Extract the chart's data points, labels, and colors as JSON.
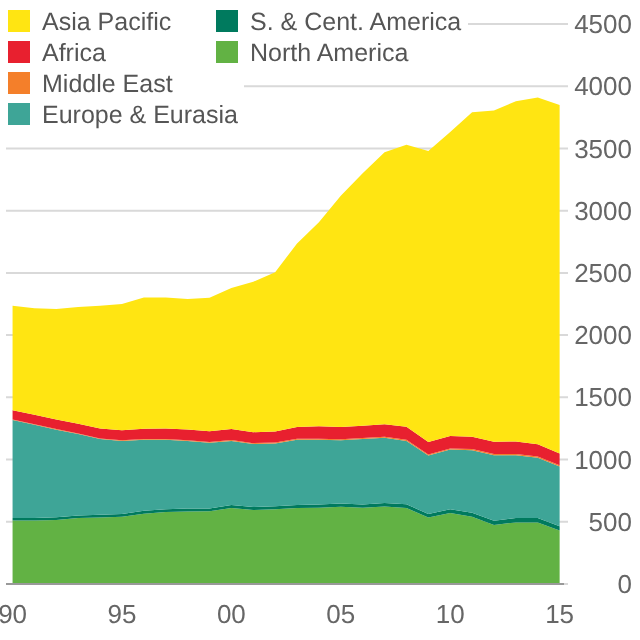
{
  "chart_data": {
    "type": "area",
    "stacked": true,
    "x": [
      1990,
      1991,
      1992,
      1993,
      1994,
      1995,
      1996,
      1997,
      1998,
      1999,
      2000,
      2001,
      2002,
      2003,
      2004,
      2005,
      2006,
      2007,
      2008,
      2009,
      2010,
      2011,
      2012,
      2013,
      2014,
      2015
    ],
    "series": [
      {
        "name": "North America",
        "color": "#62b244",
        "values": [
          510,
          510,
          515,
          530,
          535,
          540,
          565,
          578,
          583,
          585,
          610,
          595,
          600,
          610,
          612,
          620,
          612,
          622,
          610,
          535,
          570,
          540,
          475,
          495,
          495,
          430
        ]
      },
      {
        "name": "S. & Cent. America",
        "color": "#007a5e",
        "values": [
          20,
          20,
          21,
          21,
          22,
          22,
          23,
          23,
          23,
          22,
          24,
          24,
          24,
          25,
          26,
          27,
          27,
          28,
          30,
          28,
          30,
          32,
          34,
          35,
          35,
          35
        ]
      },
      {
        "name": "Europe & Eurasia",
        "color": "#3ea597",
        "values": [
          788,
          750,
          704,
          654,
          608,
          588,
          572,
          559,
          544,
          528,
          516,
          506,
          506,
          525,
          522,
          508,
          526,
          525,
          510,
          469,
          480,
          503,
          526,
          505,
          485,
          479
        ]
      },
      {
        "name": "Middle East",
        "color": "#f47f2a",
        "values": [
          4,
          4,
          5,
          5,
          5,
          5,
          6,
          6,
          6,
          6,
          7,
          7,
          7,
          7,
          8,
          8,
          8,
          9,
          9,
          9,
          9,
          9,
          10,
          10,
          10,
          10
        ]
      },
      {
        "name": "Africa",
        "color": "#e8202f",
        "values": [
          75,
          76,
          76,
          77,
          79,
          80,
          82,
          84,
          86,
          86,
          88,
          88,
          89,
          95,
          100,
          98,
          98,
          100,
          105,
          100,
          100,
          100,
          98,
          100,
          98,
          95
        ]
      },
      {
        "name": "Asia Pacific",
        "color": "#ffe512",
        "values": [
          838,
          855,
          889,
          938,
          986,
          1015,
          1054,
          1052,
          1048,
          1073,
          1133,
          1209,
          1279,
          1475,
          1638,
          1859,
          2029,
          2186,
          2266,
          2339,
          2444,
          2606,
          2662,
          2735,
          2787,
          2801
        ]
      }
    ],
    "xlim": [
      1989.7,
      2015.2
    ],
    "xticks": [
      {
        "value": 1990,
        "label": "90"
      },
      {
        "value": 1995,
        "label": "95"
      },
      {
        "value": 2000,
        "label": "00"
      },
      {
        "value": 2005,
        "label": "05"
      },
      {
        "value": 2010,
        "label": "10"
      },
      {
        "value": 2015,
        "label": "15"
      }
    ],
    "ylim": [
      0,
      4500
    ],
    "yticks": [
      0,
      500,
      1000,
      1500,
      2000,
      2500,
      3000,
      3500,
      4000,
      4500
    ],
    "grid": "y",
    "legend": "top left"
  }
}
